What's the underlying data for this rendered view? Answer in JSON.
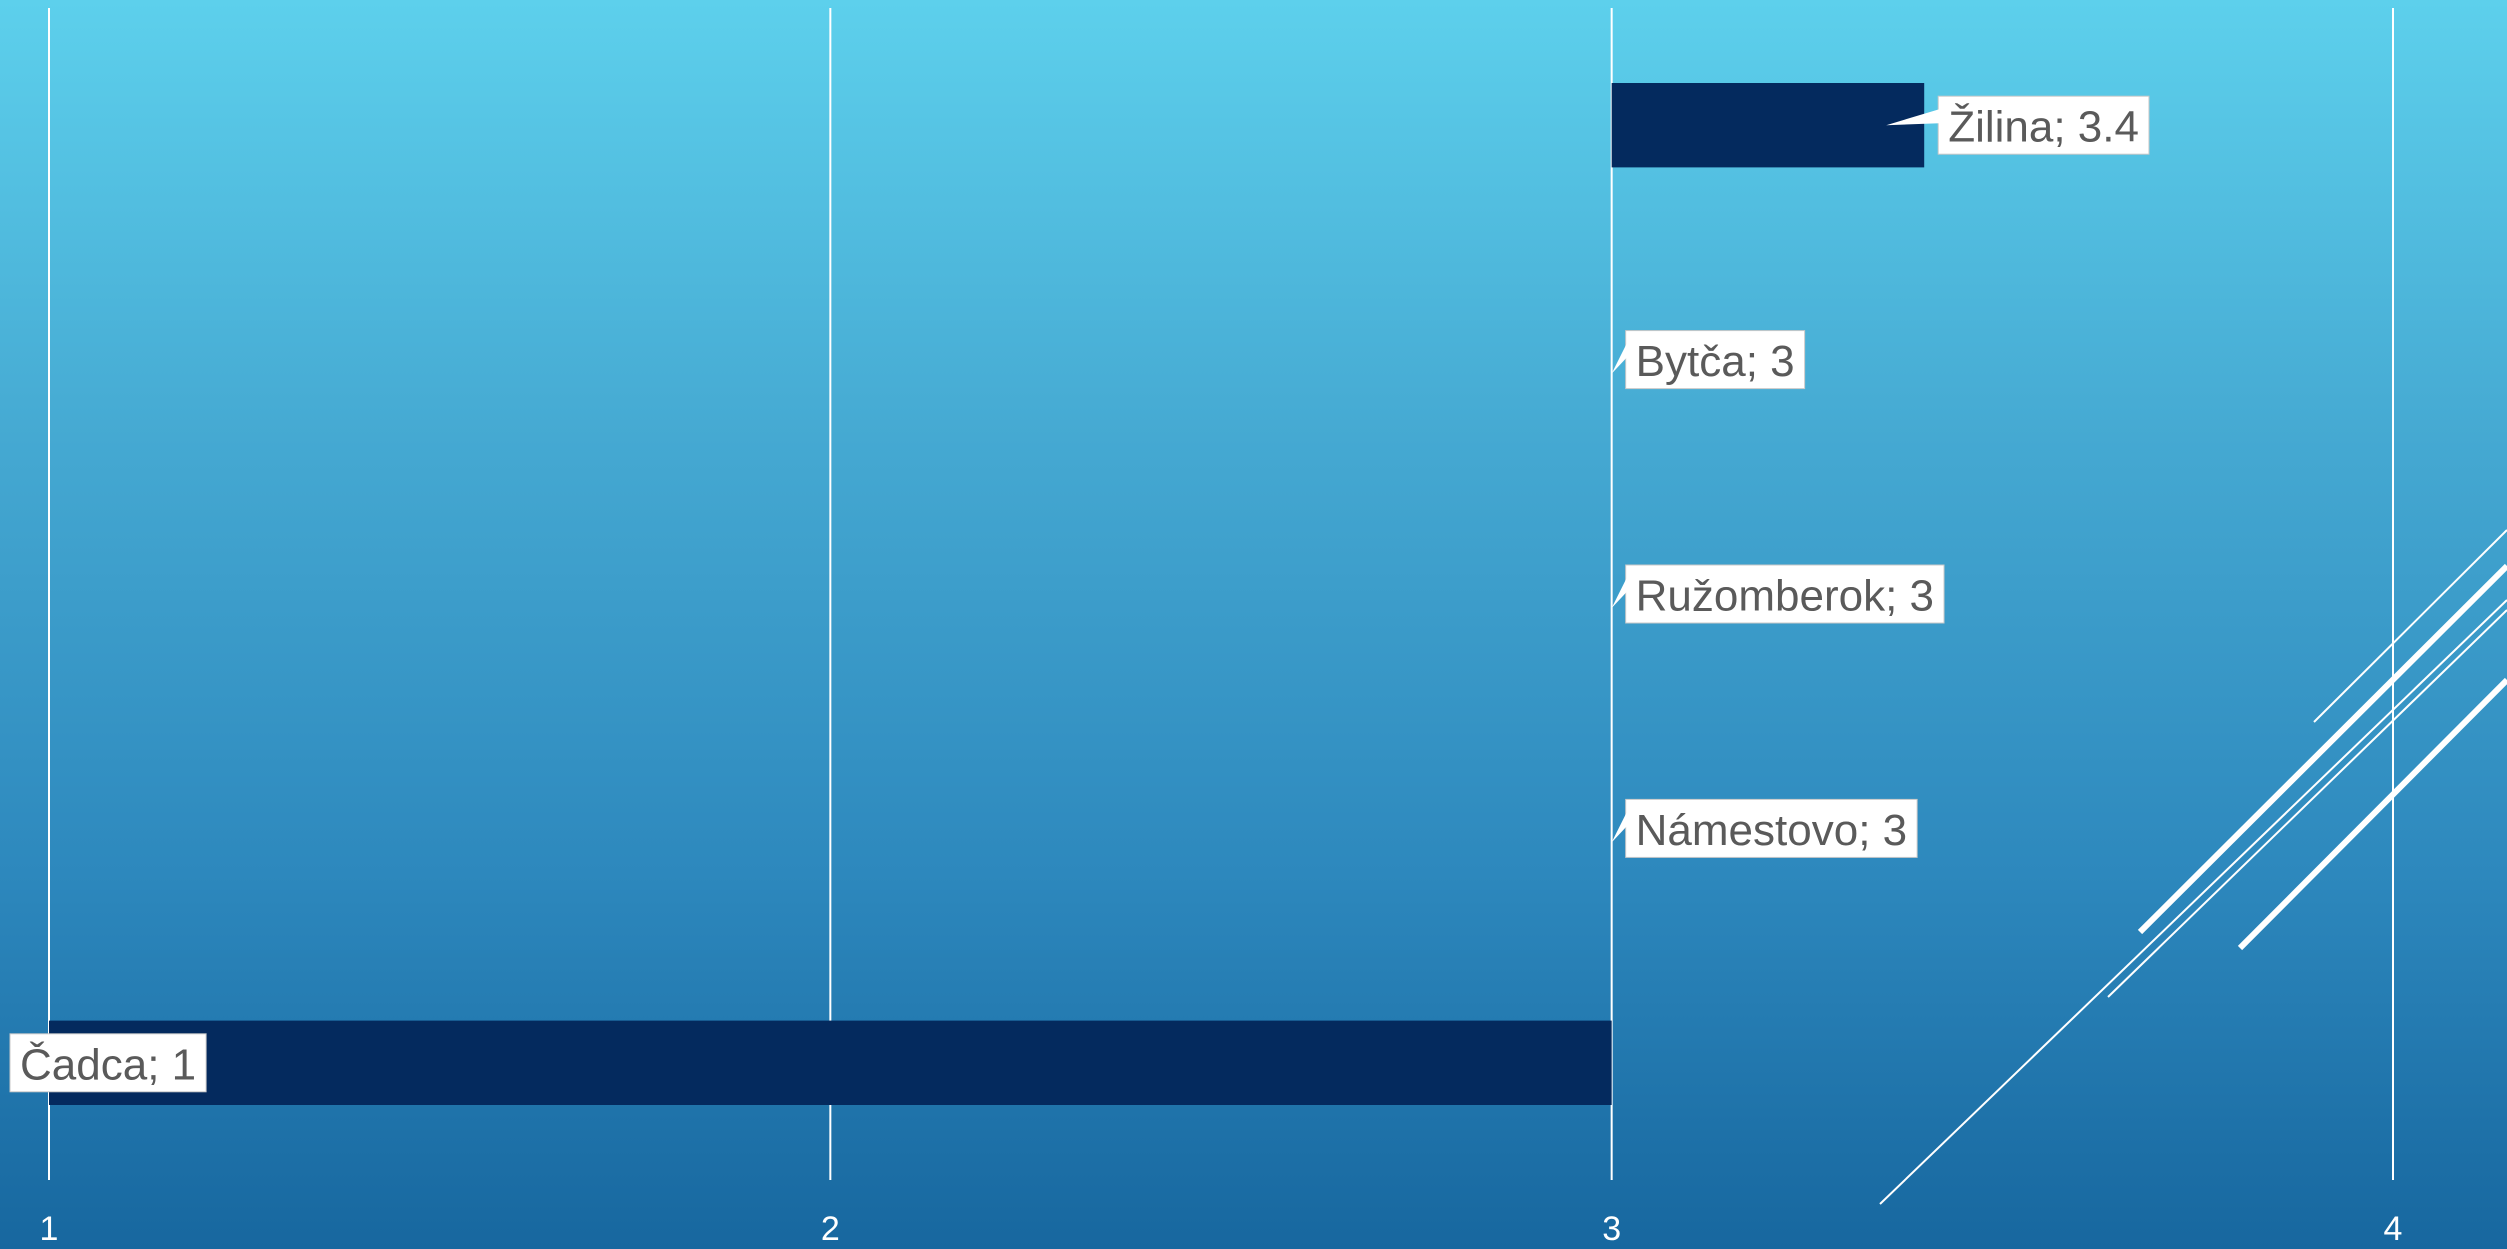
{
  "chart_data": {
    "type": "bar",
    "orientation": "horizontal",
    "categories": [
      "Čadca",
      "Námestovo",
      "Ružomberok",
      "Bytča",
      "Žilina"
    ],
    "values": [
      1,
      3,
      3,
      3,
      3.4
    ],
    "data_labels": [
      "Čadca; 1",
      "Námestovo; 3",
      "Ružomberok; 3",
      "Bytča; 3",
      "Žilina; 3.4"
    ],
    "x_ticks": [
      "1",
      "2",
      "3",
      "4"
    ],
    "xlim": [
      1,
      4
    ],
    "base_value": 3,
    "grid": true,
    "legend": "none",
    "bar_color": "#042a5e",
    "gridline_color": "#ffffff",
    "label_box_fill": "#ffffff",
    "label_text_color": "#5a5a5a"
  }
}
